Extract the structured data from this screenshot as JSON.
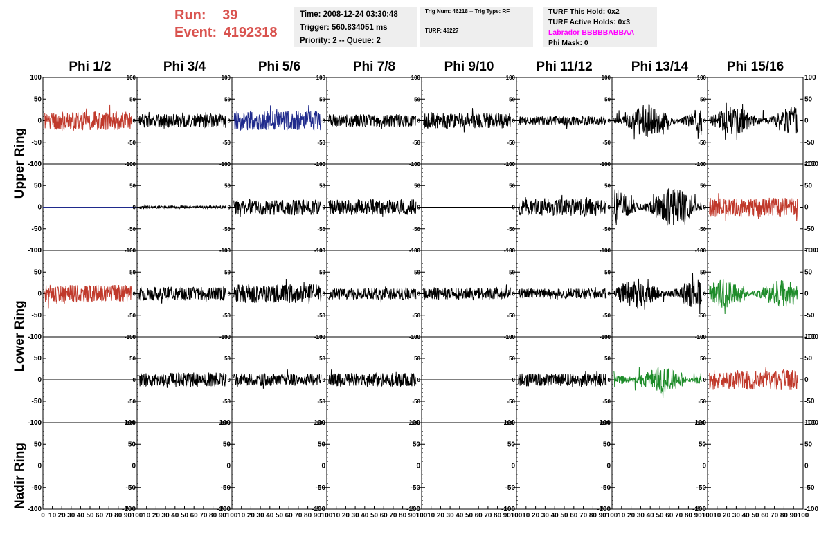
{
  "header": {
    "run_label": "Run:",
    "run_value": "39",
    "event_label": "Event:",
    "event_value": "4192318",
    "run_color": "#d9534f",
    "time": "Time: 2008-12-24 03:30:48",
    "trigger": "Trigger: 560.834051 ms",
    "priority": "Priority: 2 -- Queue: 2",
    "trig_num": "Trig Num: 46218 -- Trig Type: RF",
    "turf": "TURF: 46227",
    "turf_hold": "TURF This Hold: 0x2",
    "turf_active": "TURF Active Holds: 0x3",
    "labrador": "Labrador BBBBBABBAA",
    "labrador_color": "#ff00ff",
    "phi_mask": "Phi Mask: 0"
  },
  "columns": [
    "Phi 1/2",
    "Phi 3/4",
    "Phi 5/6",
    "Phi 7/8",
    "Phi 9/10",
    "Phi 11/12",
    "Phi 13/14",
    "Phi 15/16"
  ],
  "rings": [
    "Upper Ring",
    "Lower Ring",
    "Nadir Ring"
  ],
  "chart_data": {
    "type": "line",
    "xlabel": "",
    "ylabel": "",
    "xlim": [
      0,
      100
    ],
    "ylim": [
      -100,
      100
    ],
    "x_ticks": [
      "0",
      "10",
      "20",
      "30",
      "40",
      "50",
      "60",
      "70",
      "80",
      "90",
      "100"
    ],
    "y_ticks": [
      "100",
      "50",
      "0",
      "-50",
      "-100"
    ],
    "colors": {
      "black": "#000000",
      "red": "#c0392b",
      "blue": "#1f2a8c",
      "green": "#1e8c2a"
    },
    "panels": [
      [
        {
          "color": "red",
          "amp": 22,
          "seed": 11
        },
        {
          "color": "black",
          "amp": 16,
          "seed": 12
        },
        {
          "color": "blue",
          "amp": 22,
          "seed": 13
        },
        {
          "color": "black",
          "amp": 15,
          "seed": 14
        },
        {
          "color": "black",
          "amp": 18,
          "seed": 15
        },
        {
          "color": "black",
          "amp": 11,
          "seed": 16
        },
        {
          "color": "black",
          "amp": 32,
          "seed": 17
        },
        {
          "color": "black",
          "amp": 28,
          "seed": 18
        }
      ],
      [
        {
          "color": "blue",
          "amp": 0,
          "seed": 21
        },
        {
          "color": "black",
          "amp": 3,
          "seed": 22
        },
        {
          "color": "black",
          "amp": 18,
          "seed": 23
        },
        {
          "color": "black",
          "amp": 18,
          "seed": 24
        },
        {
          "color": "black",
          "amp": 0,
          "seed": 25
        },
        {
          "color": "black",
          "amp": 20,
          "seed": 26
        },
        {
          "color": "black",
          "amp": 38,
          "seed": 27
        },
        {
          "color": "red",
          "amp": 22,
          "seed": 28
        }
      ],
      [
        {
          "color": "red",
          "amp": 20,
          "seed": 31
        },
        {
          "color": "black",
          "amp": 16,
          "seed": 32
        },
        {
          "color": "black",
          "amp": 22,
          "seed": 33
        },
        {
          "color": "black",
          "amp": 14,
          "seed": 34
        },
        {
          "color": "black",
          "amp": 14,
          "seed": 35
        },
        {
          "color": "black",
          "amp": 12,
          "seed": 36
        },
        {
          "color": "black",
          "amp": 30,
          "seed": 37
        },
        {
          "color": "green",
          "amp": 28,
          "seed": 38
        }
      ],
      [
        {
          "color": "black",
          "amp": 0,
          "seed": 41
        },
        {
          "color": "black",
          "amp": 17,
          "seed": 42
        },
        {
          "color": "black",
          "amp": 14,
          "seed": 43
        },
        {
          "color": "black",
          "amp": 16,
          "seed": 44
        },
        {
          "color": "black",
          "amp": 0,
          "seed": 45
        },
        {
          "color": "black",
          "amp": 15,
          "seed": 46
        },
        {
          "color": "green",
          "amp": 26,
          "seed": 47
        },
        {
          "color": "red",
          "amp": 24,
          "seed": 48
        }
      ],
      [
        {
          "color": "red",
          "amp": 0,
          "seed": 51
        },
        {
          "color": "black",
          "amp": 0,
          "seed": 52
        },
        {
          "color": "black",
          "amp": 0,
          "seed": 53
        },
        {
          "color": "black",
          "amp": 0,
          "seed": 54
        },
        {
          "color": "black",
          "amp": 0,
          "seed": 55
        },
        {
          "color": "black",
          "amp": 0,
          "seed": 56
        },
        {
          "color": "black",
          "amp": 0,
          "seed": 57
        },
        {
          "color": "black",
          "amp": 0,
          "seed": 58
        }
      ]
    ]
  }
}
